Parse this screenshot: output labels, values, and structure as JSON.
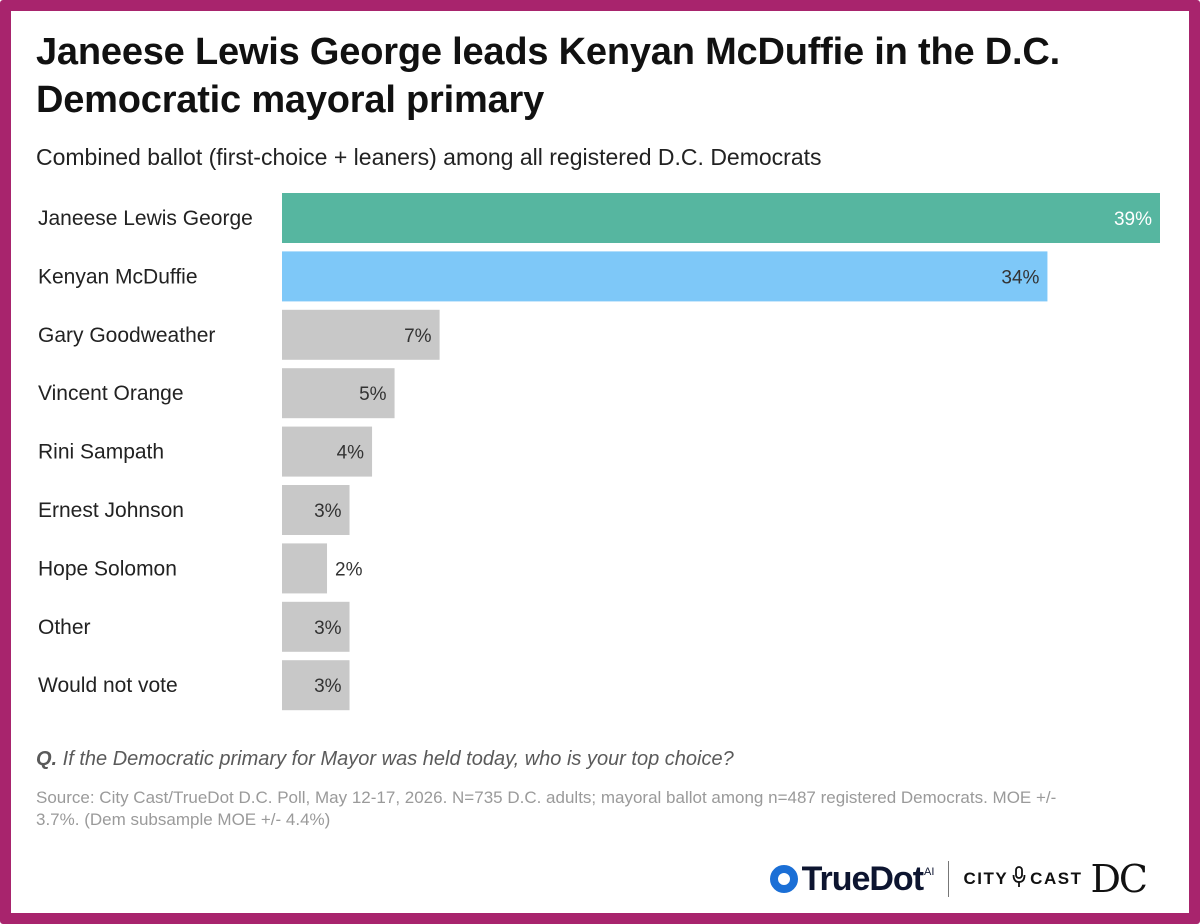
{
  "title": "Janeese Lewis George leads Kenyan McDuffie in the D.C. Democratic mayoral primary",
  "subtitle": "Combined ballot (first-choice + leaners) among all registered D.C. Democrats",
  "chart_data": {
    "type": "bar",
    "orientation": "horizontal",
    "title": "Janeese Lewis George leads Kenyan McDuffie in the D.C. Democratic mayoral primary",
    "subtitle": "Combined ballot (first-choice + leaners) among all registered D.C. Democrats",
    "categories": [
      "Janeese Lewis George",
      "Kenyan McDuffie",
      "Gary Goodweather",
      "Vincent Orange",
      "Rini Sampath",
      "Ernest Johnson",
      "Hope Solomon",
      "Other",
      "Would not vote"
    ],
    "values": [
      39,
      34,
      7,
      5,
      4,
      3,
      2,
      3,
      3
    ],
    "value_labels": [
      "39%",
      "34%",
      "7%",
      "5%",
      "4%",
      "3%",
      "2%",
      "3%",
      "3%"
    ],
    "colors": [
      "#56b6a0",
      "#7ec8f8",
      "#c8c8c8",
      "#c8c8c8",
      "#c8c8c8",
      "#c8c8c8",
      "#c8c8c8",
      "#c8c8c8",
      "#c8c8c8"
    ],
    "label_colors": [
      "#ffffff",
      "#333333",
      "#333333",
      "#333333",
      "#333333",
      "#333333",
      "#333333",
      "#333333",
      "#333333"
    ],
    "xlim": [
      0,
      39
    ],
    "grid": false,
    "xlabel": "",
    "ylabel": ""
  },
  "question": {
    "prefix": "Q.",
    "text": " If the Democratic primary for Mayor was held today, who is your top choice?"
  },
  "source": "Source: City Cast/TrueDot D.C. Poll, May 12-17, 2026. N=735 D.C. adults; mayoral ballot among n=487 registered Democrats. MOE +/- 3.7%. (Dem subsample MOE +/- 4.4%)",
  "logos": {
    "truedot": "TrueDot",
    "truedot_sup": "AI",
    "city": "CITY",
    "cast": "CAST",
    "dc": "DC",
    "mic_icon": "microphone-icon"
  },
  "colors": {
    "frame": "#a8246d",
    "highlight_1": "#56b6a0",
    "highlight_2": "#7ec8f8",
    "other_bars": "#c8c8c8"
  }
}
